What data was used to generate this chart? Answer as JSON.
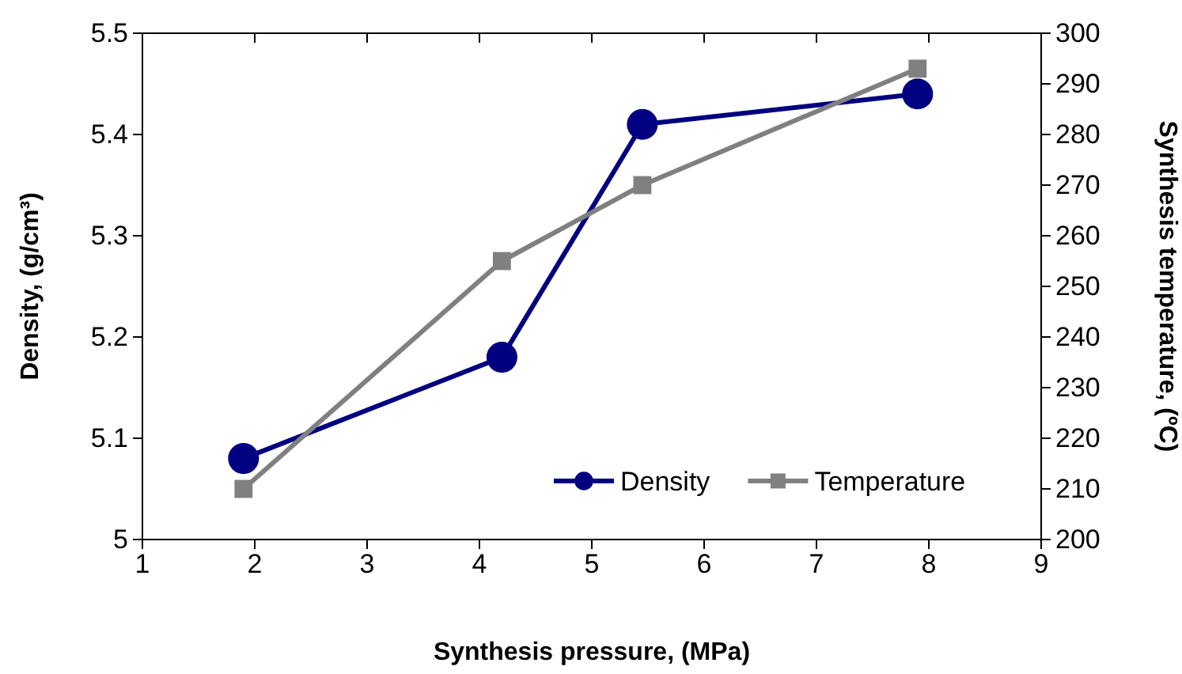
{
  "chart_data": {
    "type": "line",
    "xlabel": "Synthesis pressure, (MPa)",
    "ylabel": "Density, (g/cm³)",
    "y2label": "Synthesis temperature, (ºC)",
    "x": [
      1.9,
      4.2,
      5.45,
      7.9
    ],
    "xlim": [
      1,
      9
    ],
    "xticks": [
      1,
      2,
      3,
      4,
      5,
      6,
      7,
      8,
      9
    ],
    "ylim": [
      5,
      5.5
    ],
    "yticks": [
      {
        "value": 5,
        "label": "5"
      },
      {
        "value": 5.1,
        "label": "5.1"
      },
      {
        "value": 5.2,
        "label": "5.2"
      },
      {
        "value": 5.3,
        "label": "5.3"
      },
      {
        "value": 5.4,
        "label": "5.4"
      },
      {
        "value": 5.5,
        "label": "5.5"
      }
    ],
    "y2lim": [
      200,
      300
    ],
    "y2ticks": [
      200,
      210,
      220,
      230,
      240,
      250,
      260,
      270,
      280,
      290,
      300
    ],
    "series": [
      {
        "name": "Density",
        "color": "#000080",
        "values": [
          5.08,
          5.18,
          5.41,
          5.44
        ],
        "marker": "circle"
      },
      {
        "name": "Temperature",
        "color": "#808080",
        "values": [
          210,
          255,
          270,
          293
        ],
        "axis": "y2",
        "marker": "square"
      }
    ],
    "legend": "bottom right",
    "grid": false,
    "line_style": "solid"
  }
}
